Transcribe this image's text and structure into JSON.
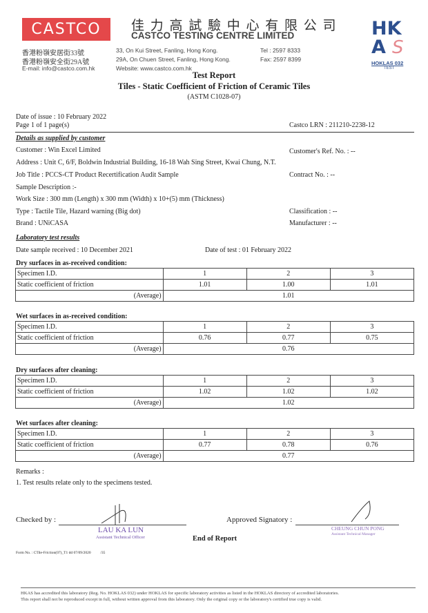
{
  "header": {
    "logo": "CASTCO",
    "company_cn": "佳 力 高 試 驗 中 心 有 限 公 司",
    "company_en": "CASTCO TESTING CENTRE LIMITED",
    "addr_cn_1": "香港粉嶺安居街33號",
    "addr_cn_2": "香港粉嶺安全街29A號",
    "email": "E-mail: info@castco.com.hk",
    "addr_en_1": "33, On Kui Street, Fanling, Hong Kong.",
    "addr_en_2": "29A, On Chuen Street, Fanling, Hong Kong.",
    "website": "Website: www.castco.com.hk",
    "tel": "Tel : 2597 8333",
    "fax": "Fax: 2597 8399",
    "hkas_logo": "HKAS",
    "hoklas": "HOKLAS 032",
    "hoklas_sub": "TEST"
  },
  "title": {
    "main": "Test Report",
    "sub": "Tiles - Static Coefficient of Friction of Ceramic Tiles",
    "std": "(ASTM C1028-07)"
  },
  "meta": {
    "date_issue": "Date of issue : 10 February 2022",
    "page": "Page 1 of 1 page(s)",
    "lrn": "Castco LRN : 211210-2238-12"
  },
  "customer": {
    "heading": "Details as supplied by customer",
    "customer": "Customer : Win Excel Limited",
    "ref": "Customer's Ref. No. : --",
    "address": "Address : Unit C, 6/F, Boldwin Industrial Building, 16-18 Wah Sing Street, Kwai Chung, N.T.",
    "job": "Job Title : PCCS-CT Product Recertification Audit Sample",
    "contract": "Contract No. : --",
    "sample_desc": "Sample Description :-",
    "work_size": "Work Size : 300 mm (Length) x 300 mm (Width) x 10+(5) mm (Thickness)",
    "type": "Type : Tactile Tile, Hazard warning (Big dot)",
    "classification": "Classification : --",
    "brand": "Brand : UNiCASA",
    "manufacturer": "Manufacturer : --"
  },
  "lab": {
    "heading": "Laboratory test results",
    "received": "Date sample received : 10 December 2021",
    "test_date": "Date of test : 01 February 2022",
    "row_id": "Specimen I.D.",
    "row_cof": "Static coefficient of friction",
    "row_avg": "(Average)",
    "tables": [
      {
        "title": "Dry surfaces in as-received condition:",
        "ids": [
          "1",
          "2",
          "3"
        ],
        "values": [
          "1.01",
          "1.00",
          "1.01"
        ],
        "average": "1.01"
      },
      {
        "title": "Wet surfaces in as-received condition:",
        "ids": [
          "1",
          "2",
          "3"
        ],
        "values": [
          "0.76",
          "0.77",
          "0.75"
        ],
        "average": "0.76"
      },
      {
        "title": "Dry surfaces after cleaning:",
        "ids": [
          "1",
          "2",
          "3"
        ],
        "values": [
          "1.02",
          "1.02",
          "1.02"
        ],
        "average": "1.02"
      },
      {
        "title": "Wet surfaces after cleaning:",
        "ids": [
          "1",
          "2",
          "3"
        ],
        "values": [
          "0.77",
          "0.78",
          "0.76"
        ],
        "average": "0.77"
      }
    ]
  },
  "remarks": {
    "heading": "Remarks :",
    "item1": "1. Test results relate only to the specimens tested."
  },
  "signatures": {
    "checked_label": "Checked by :",
    "checked_name": "LAU KA LUN",
    "checked_title": "Assistant Technical Officer",
    "approved_label": "Approved Signatory :",
    "approved_name": "CHEUNG CHUN PONG",
    "approved_title": "Assistant Technical Manager",
    "end": "End of Report"
  },
  "form_no": "Form No. : CTile-Friction(07)_T1 dd 07/09/2020          /35",
  "footer": {
    "line1": "HKAS has accredited this laboratory (Reg. No. HOKLAS 032) under HOKLAS for specific laboratory activities as listed in the HOKLAS directory of accredited laboratories.",
    "line2": "This report shall not be reproduced except in full, without written approval from this laboratory. Only the original copy or the laboratory's certified true copy is valid."
  }
}
